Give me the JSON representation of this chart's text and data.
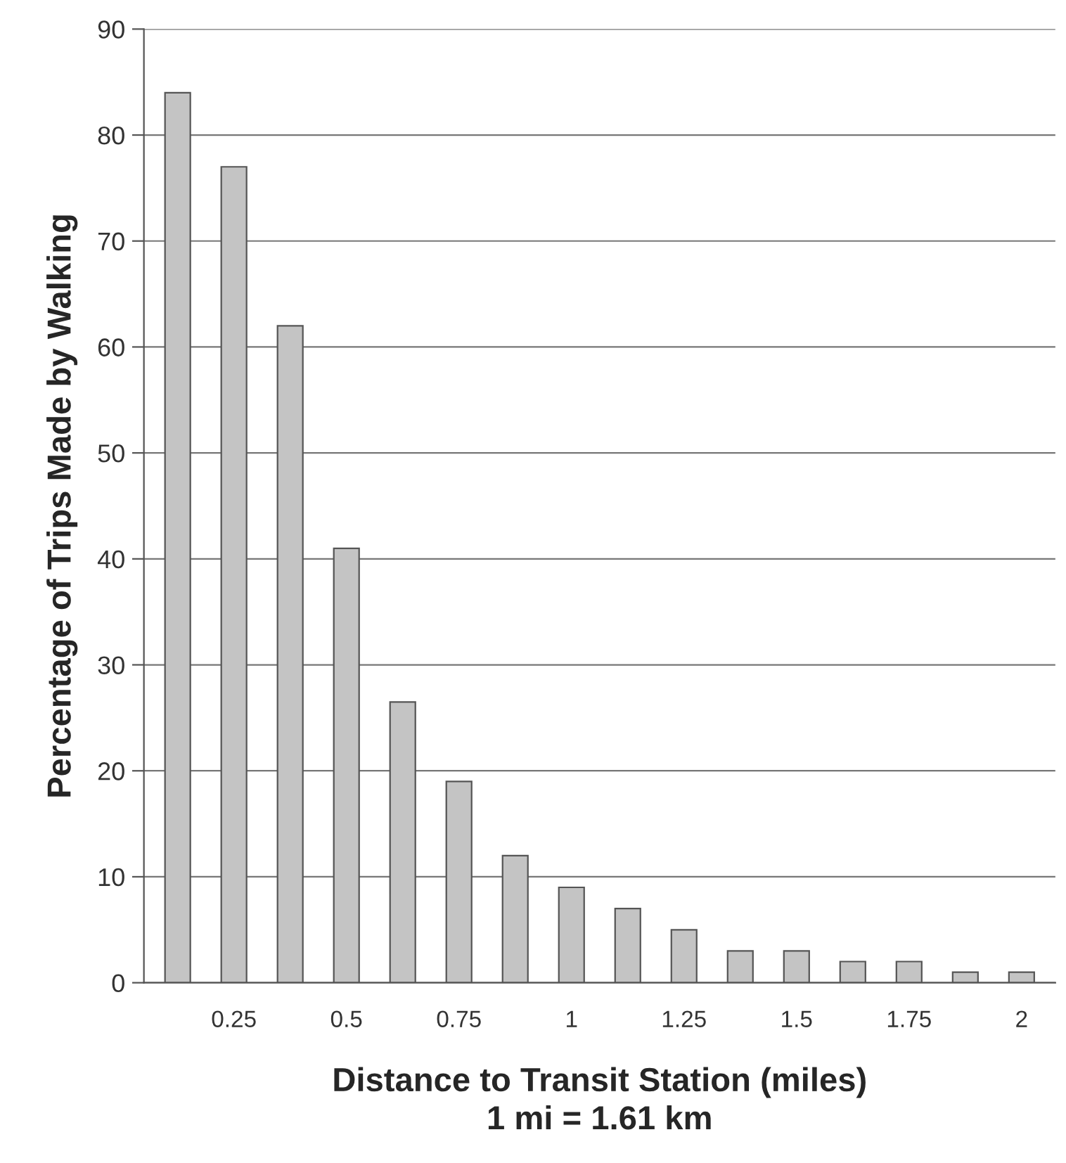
{
  "chart_data": {
    "type": "bar",
    "xlabel": "Distance to Transit Station (miles)\n1 mi = 1.61 km",
    "ylabel": "Percentage of Trips Made by Walking",
    "categories": [
      null,
      "0.25",
      null,
      "0.5",
      null,
      "0.75",
      null,
      "1",
      null,
      "1.25",
      null,
      "1.5",
      null,
      "1.75",
      null,
      "2"
    ],
    "values": [
      84,
      77,
      62,
      41,
      26.5,
      19,
      12,
      9,
      7,
      5,
      3,
      3,
      2,
      2,
      1,
      1
    ],
    "color": "#c4c4c4",
    "ylim": [
      0,
      90
    ],
    "yticks": [
      0,
      10,
      20,
      30,
      40,
      50,
      60,
      70,
      80,
      90
    ],
    "grid": "y"
  }
}
